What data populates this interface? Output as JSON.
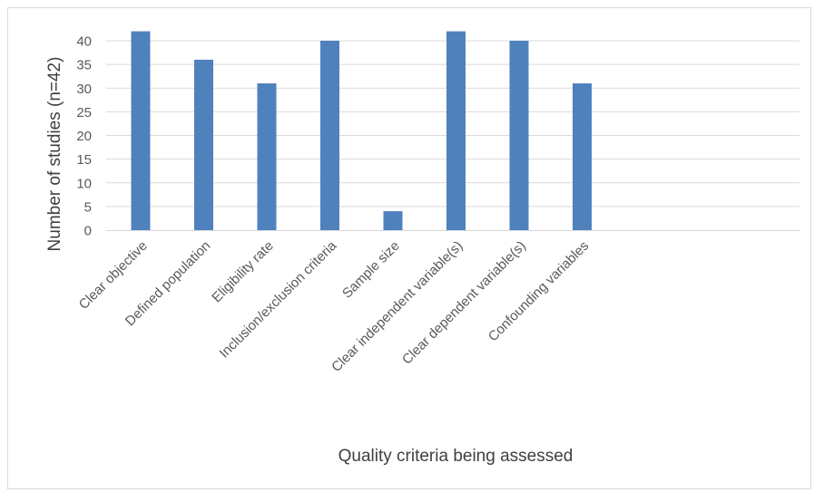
{
  "chart_data": {
    "type": "bar",
    "title": "",
    "xlabel": "Quality criteria being assessed",
    "ylabel": "Number of studies (n=42)",
    "categories": [
      "Clear objective",
      "Defined population",
      "Eligibility rate",
      "Inclusion/exclusion criteria",
      "Sample size",
      "Clear independent variable(s)",
      "Clear dependent variable(s)",
      "Confounding variables"
    ],
    "values": [
      42,
      36,
      31,
      40,
      4,
      42,
      40,
      31
    ],
    "ylim": [
      0,
      40
    ],
    "yticks": [
      "0",
      "5",
      "10",
      "15",
      "20",
      "25",
      "30",
      "35",
      "40"
    ],
    "grid": true,
    "legend": "none",
    "colors": {
      "bar": "#4f81bd",
      "grid": "#d9d9d9",
      "tick_text": "#595959"
    }
  }
}
